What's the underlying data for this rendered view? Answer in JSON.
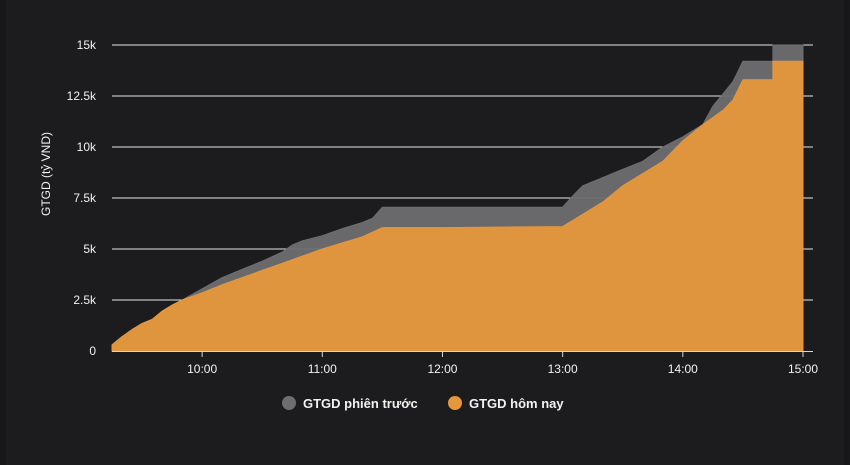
{
  "colors": {
    "background": "#1c1c1e",
    "grid": "#e6e6e6",
    "previous_session": "#6e6e70",
    "today": "#e6973c",
    "text": "#f2f2f2"
  },
  "chart_data": {
    "type": "area",
    "ylabel": "GTGD (tỷ VND)",
    "xlabel": "",
    "x_axis": {
      "min": "09:15",
      "max": "15:05",
      "ticks": [
        "10:00",
        "11:00",
        "12:00",
        "13:00",
        "14:00",
        "15:00"
      ]
    },
    "y_axis": {
      "min": 0,
      "max": 15000,
      "ticks": [
        0,
        2500,
        5000,
        7500,
        10000,
        12500,
        15000
      ],
      "tick_labels": [
        "0",
        "2.5k",
        "5k",
        "7.5k",
        "10k",
        "12.5k",
        "15k"
      ]
    },
    "grid": true,
    "legend_position": "bottom",
    "series": [
      {
        "name": "GTGD phiên trước",
        "color": "#6e6e70",
        "points": [
          [
            "09:15",
            300
          ],
          [
            "09:20",
            700
          ],
          [
            "09:25",
            1000
          ],
          [
            "09:30",
            1300
          ],
          [
            "09:35",
            1500
          ],
          [
            "09:40",
            1900
          ],
          [
            "09:45",
            2200
          ],
          [
            "09:50",
            2500
          ],
          [
            "10:00",
            3050
          ],
          [
            "10:10",
            3600
          ],
          [
            "10:20",
            4000
          ],
          [
            "10:30",
            4400
          ],
          [
            "10:40",
            4850
          ],
          [
            "10:45",
            5200
          ],
          [
            "10:50",
            5400
          ],
          [
            "11:00",
            5650
          ],
          [
            "11:10",
            6000
          ],
          [
            "11:20",
            6300
          ],
          [
            "11:25",
            6500
          ],
          [
            "11:30",
            7050
          ],
          [
            "13:00",
            7050
          ],
          [
            "13:05",
            7600
          ],
          [
            "13:10",
            8100
          ],
          [
            "13:20",
            8500
          ],
          [
            "13:30",
            8900
          ],
          [
            "13:40",
            9300
          ],
          [
            "13:50",
            10000
          ],
          [
            "14:00",
            10500
          ],
          [
            "14:10",
            11100
          ],
          [
            "14:15",
            12000
          ],
          [
            "14:20",
            12600
          ],
          [
            "14:25",
            13200
          ],
          [
            "14:30",
            14200
          ],
          [
            "14:45",
            14200
          ],
          [
            "14:45",
            15000
          ],
          [
            "15:00",
            15000
          ]
        ]
      },
      {
        "name": "GTGD hôm nay",
        "color": "#e6973c",
        "points": [
          [
            "09:15",
            300
          ],
          [
            "09:20",
            700
          ],
          [
            "09:25",
            1050
          ],
          [
            "09:30",
            1350
          ],
          [
            "09:35",
            1550
          ],
          [
            "09:40",
            1950
          ],
          [
            "09:45",
            2250
          ],
          [
            "09:50",
            2500
          ],
          [
            "10:00",
            2850
          ],
          [
            "10:10",
            3250
          ],
          [
            "10:20",
            3600
          ],
          [
            "10:30",
            3950
          ],
          [
            "10:40",
            4300
          ],
          [
            "10:50",
            4650
          ],
          [
            "11:00",
            5000
          ],
          [
            "11:10",
            5300
          ],
          [
            "11:20",
            5600
          ],
          [
            "11:30",
            6050
          ],
          [
            "12:00",
            6050
          ],
          [
            "13:00",
            6100
          ],
          [
            "13:10",
            6700
          ],
          [
            "13:20",
            7300
          ],
          [
            "13:30",
            8100
          ],
          [
            "13:40",
            8700
          ],
          [
            "13:50",
            9300
          ],
          [
            "14:00",
            10300
          ],
          [
            "14:10",
            11100
          ],
          [
            "14:20",
            11800
          ],
          [
            "14:25",
            12300
          ],
          [
            "14:30",
            13300
          ],
          [
            "14:45",
            13300
          ],
          [
            "14:45",
            14200
          ],
          [
            "15:00",
            14200
          ]
        ]
      }
    ]
  }
}
